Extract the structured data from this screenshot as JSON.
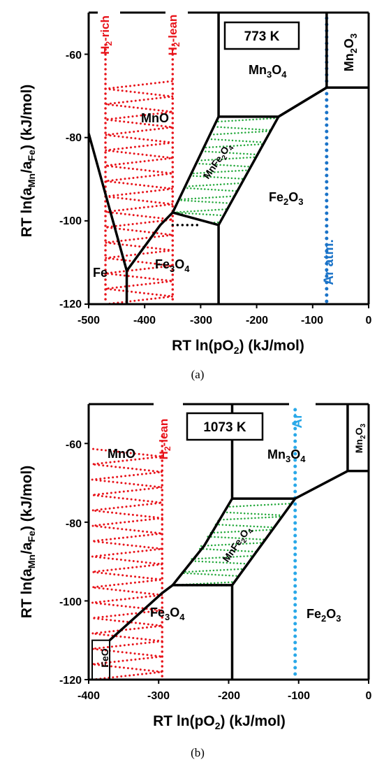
{
  "figure": {
    "panels": [
      {
        "caption": "(a)",
        "temperature_label": "773 K",
        "xlabel": "RT ln(pO2) (kJ/mol)",
        "ylabel": "RT ln(aMn/aFe) (kJ/mol)",
        "x_ticks": [
          "-500",
          "-400",
          "-300",
          "-200",
          "-100",
          "0"
        ],
        "y_ticks": [
          "-60",
          "-80",
          "-100",
          "-120"
        ],
        "phases": {
          "mno": "MnO",
          "mn3o4": "Mn3O4",
          "mn2o3": "Mn2O3",
          "fe2o3": "Fe2O3",
          "fe3o4": "Fe3O4",
          "fe": "Fe",
          "mnfe2o4": "MnFe2O4"
        },
        "line_labels": {
          "h2_rich": "H2-rich",
          "h2_lean": "H2-lean",
          "ar": "Ar atm."
        }
      },
      {
        "caption": "(b)",
        "temperature_label": "1073 K",
        "xlabel": "RT ln(pO2) (kJ/mol)",
        "ylabel": "RT ln(aMn/aFe) (kJ/mol)",
        "x_ticks": [
          "-400",
          "-300",
          "-200",
          "-100",
          "0"
        ],
        "y_ticks": [
          "-60",
          "-80",
          "-100",
          "-120"
        ],
        "phases": {
          "mno": "MnO",
          "mn3o4": "Mn3O4",
          "mn2o3": "Mn2O3",
          "fe2o3": "Fe2O3",
          "fe3o4": "Fe3O4",
          "feo": "FeO",
          "mnfe2o4": "MnFe2O4"
        },
        "line_labels": {
          "h2_lean": "H2-lean",
          "ar": "Ar"
        }
      }
    ]
  },
  "chart_data": [
    {
      "type": "phase-diagram",
      "temperature": "773 K",
      "xlim": [
        -500,
        0
      ],
      "ylim": [
        -120,
        -50
      ],
      "xlabel": "RT ln(pO2) (kJ/mol)",
      "ylabel": "RT ln(aMn/aFe) (kJ/mol)",
      "boundaries": [
        {
          "x": [
            -500,
            -432
          ],
          "y": [
            -79,
            -112
          ]
        },
        {
          "x": [
            -432,
            -432
          ],
          "y": [
            -112,
            -120
          ]
        },
        {
          "x": [
            -432,
            -372,
            -350
          ],
          "y": [
            -112,
            -101,
            -98
          ]
        },
        {
          "x": [
            -350,
            -268,
            -161,
            -75
          ],
          "y": [
            -98,
            -75,
            -75,
            -68
          ]
        },
        {
          "x": [
            -268,
            -268
          ],
          "y": [
            -50,
            -75
          ]
        },
        {
          "x": [
            -350,
            -268,
            -268
          ],
          "y": [
            -98,
            -101,
            -120
          ]
        },
        {
          "x": [
            -161,
            -75,
            -75,
            0
          ],
          "y": [
            -75,
            -68,
            -68,
            -68
          ]
        },
        {
          "x": [
            -75,
            -75
          ],
          "y": [
            -50,
            -68
          ]
        },
        {
          "x": [
            -268,
            -161
          ],
          "y": [
            -101,
            -75
          ]
        }
      ],
      "mnfe2o4_region": {
        "x": [
          -350,
          -268,
          -161,
          -268
        ],
        "y": [
          -98,
          -75,
          -75,
          -101
        ]
      },
      "dotted_boundary": {
        "x": [
          -350,
          -300
        ],
        "y": [
          -101,
          -101
        ]
      },
      "red_band": {
        "x": [
          -470,
          -350
        ],
        "y": [
          -120,
          -65
        ]
      },
      "vertical_lines": [
        {
          "name": "H2-rich",
          "x": -470,
          "color": "#e8141b"
        },
        {
          "name": "H2-lean",
          "x": -350,
          "color": "#e8141b"
        },
        {
          "name": "Ar atm.",
          "x": -75,
          "color": "#1a73c8"
        }
      ]
    },
    {
      "type": "phase-diagram",
      "temperature": "1073 K",
      "xlim": [
        -400,
        0
      ],
      "ylim": [
        -120,
        -50
      ],
      "xlabel": "RT ln(pO2) (kJ/mol)",
      "ylabel": "RT ln(aMn/aFe) (kJ/mol)",
      "boundaries": [
        {
          "x": [
            -370,
            -295,
            -280
          ],
          "y": [
            -110,
            -98,
            -96
          ]
        },
        {
          "x": [
            -280,
            -235,
            -195
          ],
          "y": [
            -96,
            -86,
            -74
          ]
        },
        {
          "x": [
            -195,
            -105
          ],
          "y": [
            -74,
            -74
          ]
        },
        {
          "x": [
            -105,
            -30,
            0
          ],
          "y": [
            -74,
            -67,
            -67
          ]
        },
        {
          "x": [
            -195,
            -195
          ],
          "y": [
            -50,
            -74
          ]
        },
        {
          "x": [
            -195,
            -195
          ],
          "y": [
            -96,
            -120
          ]
        },
        {
          "x": [
            -280,
            -195
          ],
          "y": [
            -96,
            -96
          ]
        },
        {
          "x": [
            -195,
            -105
          ],
          "y": [
            -96,
            -74
          ]
        },
        {
          "x": [
            -30,
            -30
          ],
          "y": [
            -50,
            -67
          ]
        }
      ],
      "mnfe2o4_region": {
        "x": [
          -280,
          -195,
          -105,
          -195
        ],
        "y": [
          -96,
          -74,
          -74,
          -96
        ]
      },
      "feo_box": {
        "x": [
          -395,
          -370
        ],
        "y": [
          -120,
          -110
        ]
      },
      "red_band": {
        "x": [
          -395,
          -295
        ],
        "y": [
          -120,
          -60
        ]
      },
      "vertical_lines": [
        {
          "name": "H2-lean",
          "x": -295,
          "color": "#e8141b"
        },
        {
          "name": "Ar",
          "x": -105,
          "color": "#29a8e8"
        }
      ]
    }
  ]
}
